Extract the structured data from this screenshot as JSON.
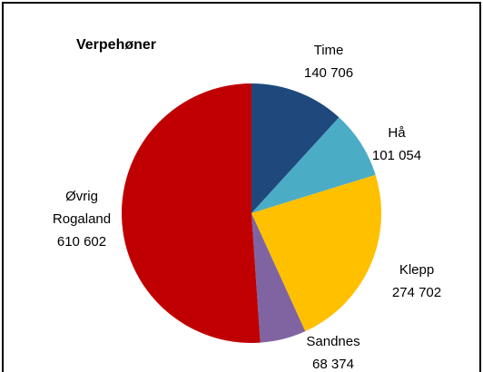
{
  "chart_data": {
    "type": "pie",
    "title": "Verpehøner",
    "categories": [
      "Time",
      "Hå",
      "Klepp",
      "Sandnes",
      "Øvrig Rogaland"
    ],
    "values": [
      140706,
      101054,
      274702,
      68374,
      610602
    ],
    "value_labels": [
      "140 706",
      "101 054",
      "274 702",
      "68 374",
      "610 602"
    ],
    "colors": [
      "#1f497d",
      "#4bacc6",
      "#ffc000",
      "#8064a2",
      "#c00000"
    ]
  }
}
